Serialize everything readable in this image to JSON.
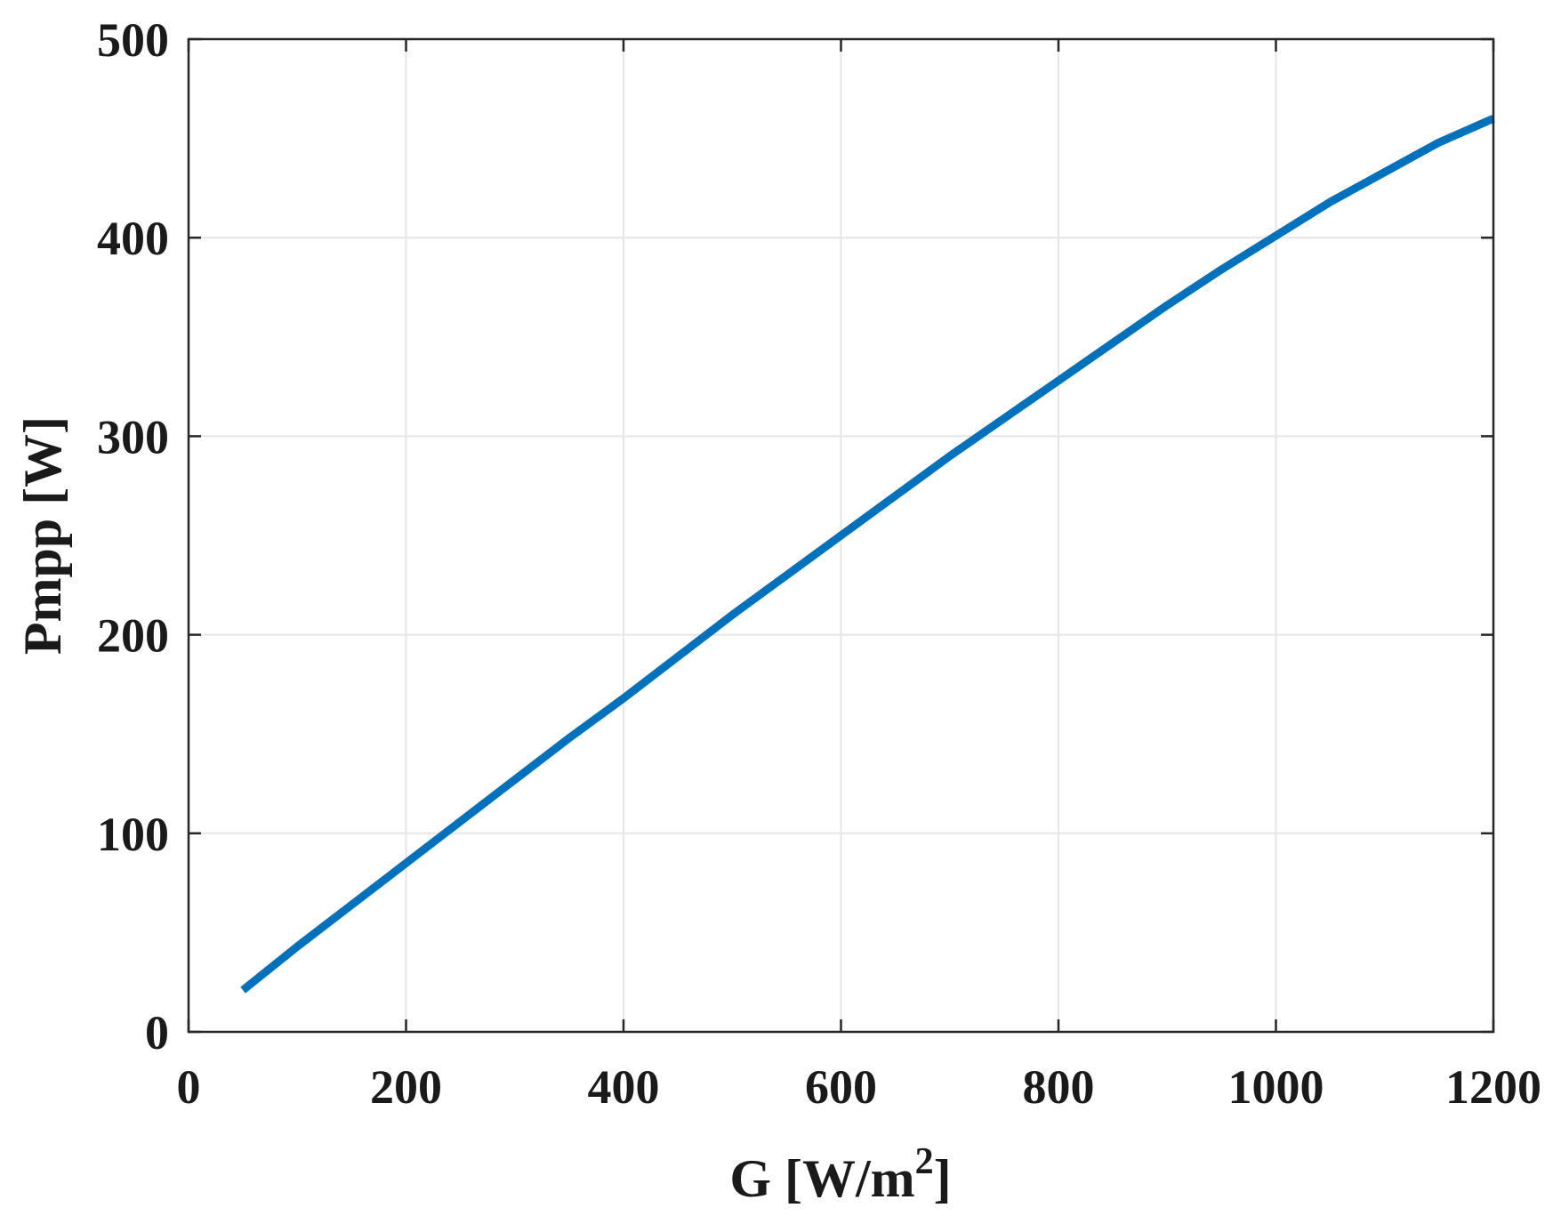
{
  "chart_data": {
    "type": "line",
    "title": "",
    "xlabel": "G [W/m2]",
    "xlabel_parts": {
      "main": "G [W/m",
      "sup": "2",
      "close": "]"
    },
    "ylabel": "Pmpp [W]",
    "xlim": [
      0,
      1200
    ],
    "ylim": [
      0,
      500
    ],
    "xticks": [
      0,
      200,
      400,
      600,
      800,
      1000,
      1200
    ],
    "yticks": [
      0,
      100,
      200,
      300,
      400,
      500
    ],
    "xtick_labels": [
      "0",
      "200",
      "400",
      "600",
      "800",
      "1000",
      "1200"
    ],
    "ytick_labels": [
      "0",
      "100",
      "200",
      "300",
      "400",
      "500"
    ],
    "grid": true,
    "legend": null,
    "series": [
      {
        "name": "Pmpp",
        "color": "#0072BD",
        "x": [
          50,
          100,
          150,
          200,
          250,
          300,
          350,
          400,
          450,
          500,
          550,
          600,
          650,
          700,
          750,
          800,
          850,
          900,
          950,
          1000,
          1050,
          1100,
          1150,
          1200
        ],
        "y": [
          21,
          43,
          64,
          85,
          106,
          127,
          148,
          168,
          189,
          210,
          230,
          250,
          270,
          290,
          309,
          328,
          347,
          366,
          384,
          401,
          418,
          433,
          448,
          460
        ]
      }
    ]
  },
  "colors": {
    "line": "#0072BD",
    "axis": "#262626",
    "grid": "#e6e6e6",
    "text": "#1a1a1a",
    "background": "#ffffff"
  }
}
